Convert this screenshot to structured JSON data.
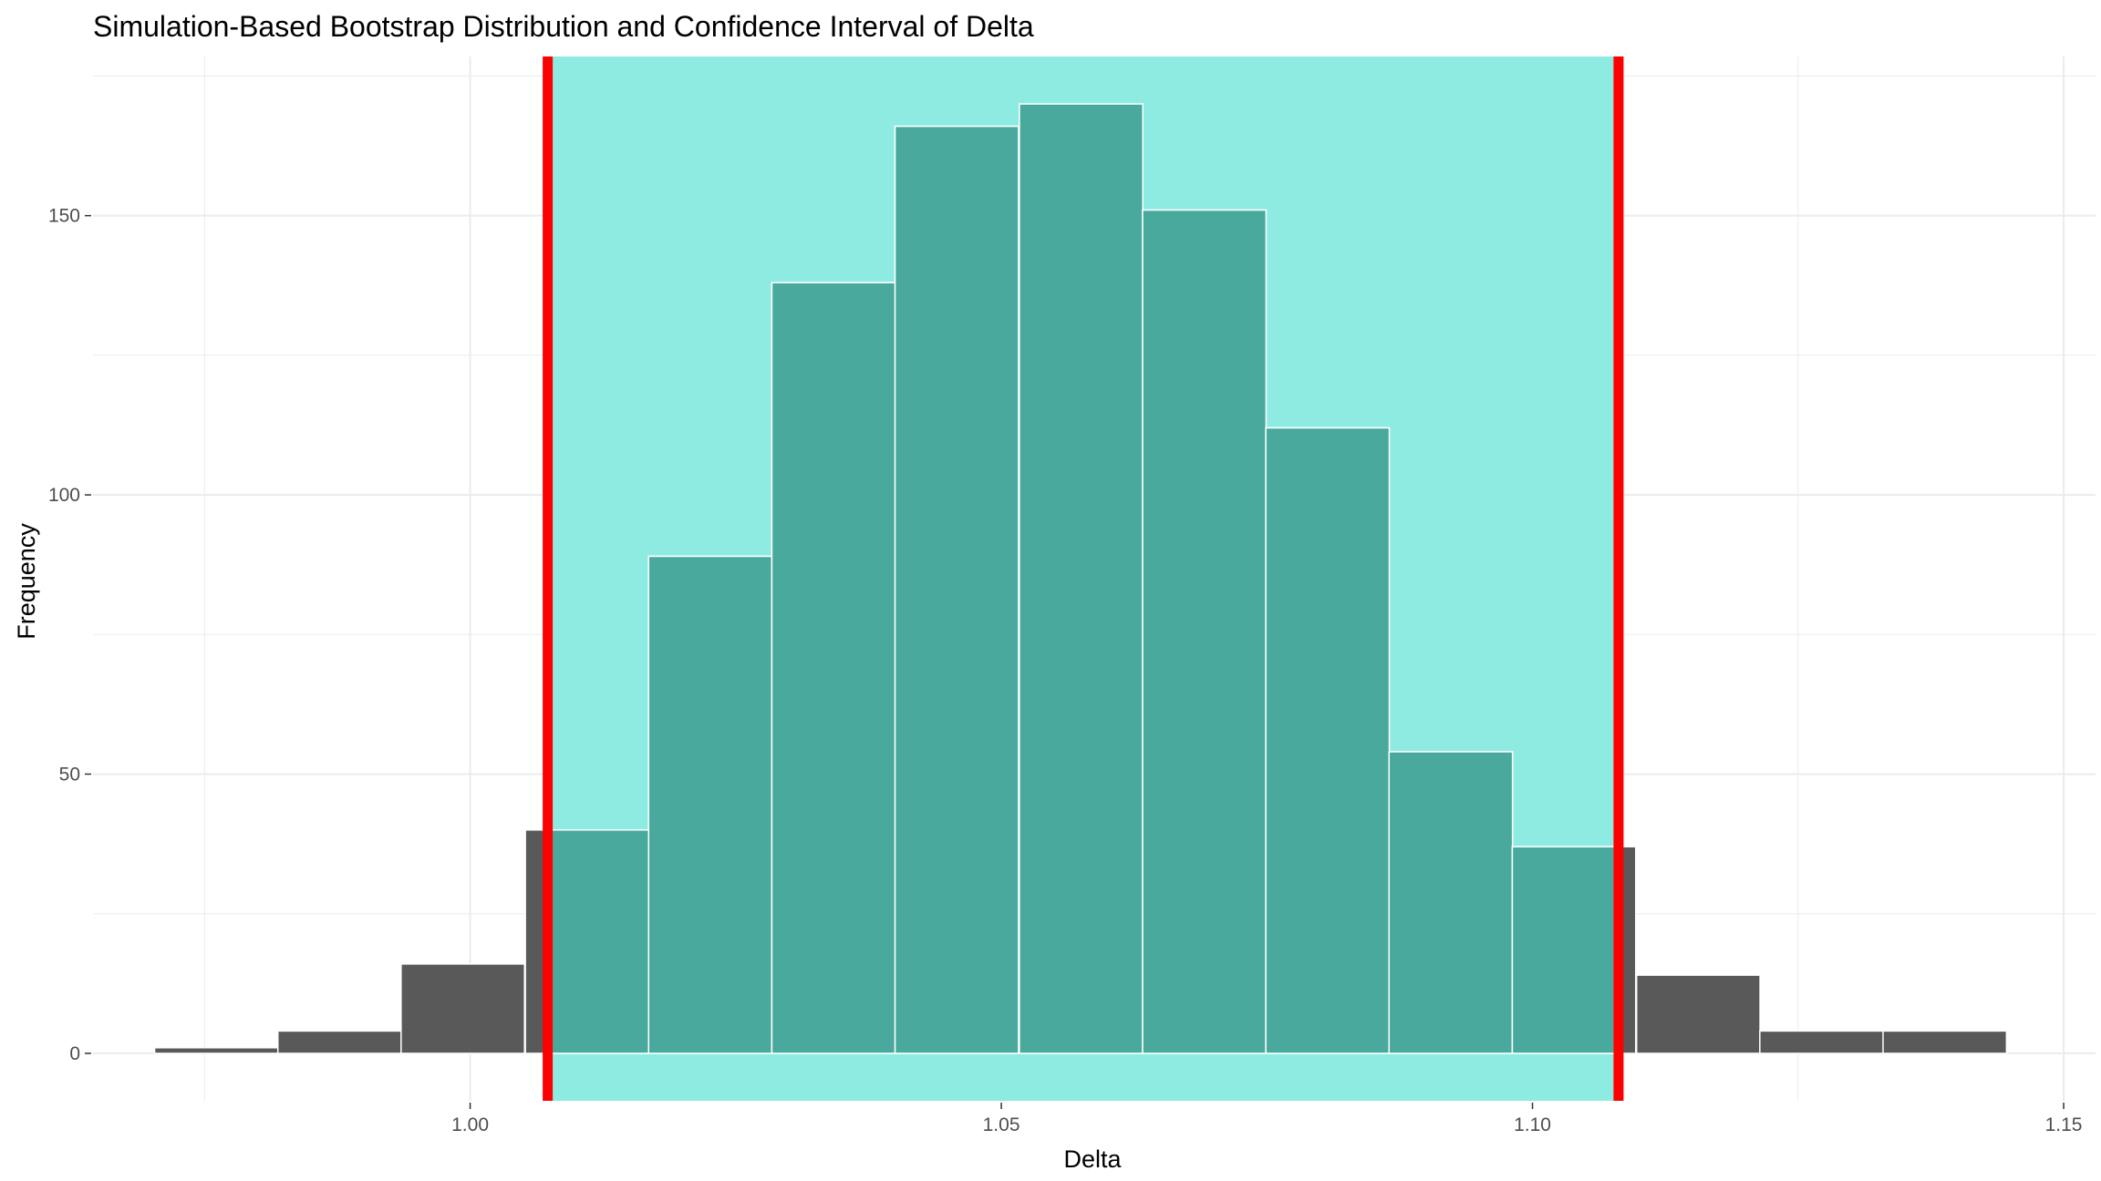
{
  "chart_data": {
    "type": "bar",
    "title": "Simulation-Based Bootstrap Distribution and Confidence Interval of Delta",
    "xlabel": "Delta",
    "ylabel": "Frequency",
    "xlim": [
      0.9645,
      1.153
    ],
    "ylim": [
      -8.5,
      178.5
    ],
    "x_ticks": [
      {
        "value": 1.0,
        "label": "1.00"
      },
      {
        "value": 1.05,
        "label": "1.05"
      },
      {
        "value": 1.1,
        "label": "1.10"
      },
      {
        "value": 1.15,
        "label": "1.15"
      }
    ],
    "y_ticks": [
      {
        "value": 0,
        "label": "0"
      },
      {
        "value": 50,
        "label": "50"
      },
      {
        "value": 100,
        "label": "100"
      },
      {
        "value": 150,
        "label": "150"
      }
    ],
    "bin_width": 0.01162,
    "bins": [
      {
        "x0": 0.9703,
        "count": 1
      },
      {
        "x0": 0.9819,
        "count": 4
      },
      {
        "x0": 0.9935,
        "count": 16
      },
      {
        "x0": 1.0052,
        "count": 40
      },
      {
        "x0": 1.0168,
        "count": 89
      },
      {
        "x0": 1.0284,
        "count": 138
      },
      {
        "x0": 1.04,
        "count": 166
      },
      {
        "x0": 1.0517,
        "count": 170
      },
      {
        "x0": 1.0633,
        "count": 151
      },
      {
        "x0": 1.0749,
        "count": 112
      },
      {
        "x0": 1.0865,
        "count": 54
      },
      {
        "x0": 1.0981,
        "count": 37
      },
      {
        "x0": 1.1098,
        "count": 14
      },
      {
        "x0": 1.1214,
        "count": 4
      },
      {
        "x0": 1.133,
        "count": 4
      }
    ],
    "confidence_interval": {
      "lower": 1.0073,
      "upper": 1.1081
    },
    "grid": true,
    "colors": {
      "bar_outside": "#595959",
      "bar_inside": "#4aa99d",
      "bar_outline": "#ffffff",
      "ci_shade": "#8eebe2",
      "ci_line": "#ff0000",
      "grid": "#ebebeb"
    }
  }
}
